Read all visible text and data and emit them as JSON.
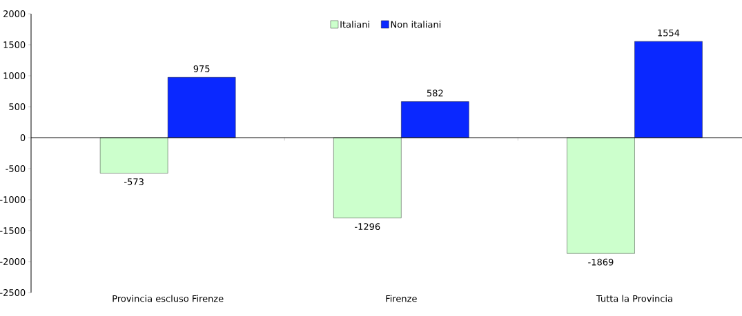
{
  "chart_data": {
    "type": "bar",
    "categories": [
      "Provincia escluso Firenze",
      "Firenze",
      "Tutta la Provincia"
    ],
    "series": [
      {
        "name": "Italiani",
        "color": "#ccffcc",
        "values": [
          -573,
          -1296,
          -1869
        ]
      },
      {
        "name": "Non italiani",
        "color": "#0a28ff",
        "values": [
          975,
          582,
          1554
        ]
      }
    ],
    "ylim": [
      -2500,
      2000
    ],
    "yticks": [
      -2500,
      -2000,
      -1500,
      -1000,
      -500,
      0,
      500,
      1000,
      1500,
      2000
    ],
    "ref_lines": [
      {
        "axis": "y",
        "value": 0,
        "color": "#000000"
      }
    ],
    "data_labels": true,
    "legend": "top",
    "grid": false
  }
}
